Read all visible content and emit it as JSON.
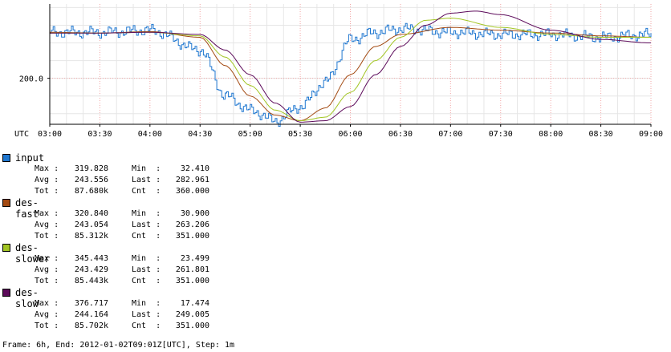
{
  "chart_data": {
    "type": "line",
    "timezone": "UTC",
    "x_ticks": [
      "03:00",
      "03:30",
      "04:00",
      "04:30",
      "05:00",
      "05:30",
      "06:00",
      "06:30",
      "07:00",
      "07:30",
      "08:00",
      "08:30",
      "09:00"
    ],
    "x_range": [
      "03:00",
      "09:00"
    ],
    "y_ticks": [
      200.0
    ],
    "y_tick_labels": [
      "200.0"
    ],
    "ylim": [
      135,
      305
    ],
    "grid": true,
    "legend_position": "bottom",
    "series": [
      {
        "name": "input",
        "color": "#1f77d0",
        "stepped": true,
        "x": [
          "03:00",
          "03:30",
          "04:00",
          "04:30",
          "04:45",
          "05:00",
          "05:15",
          "05:30",
          "05:45",
          "06:00",
          "06:15",
          "06:30",
          "07:00",
          "07:30",
          "08:00",
          "08:30",
          "09:00"
        ],
        "y": [
          265,
          265,
          268,
          240,
          175,
          155,
          140,
          160,
          195,
          255,
          265,
          270,
          265,
          262,
          262,
          258,
          262
        ],
        "stats": {
          "max": "319.828",
          "min": "32.410",
          "avg": "243.556",
          "last": "282.961",
          "tot": "87.680k",
          "cnt": "360.000"
        }
      },
      {
        "name": "des-fast",
        "color": "#a34a12",
        "stepped": false,
        "x": [
          "03:00",
          "03:30",
          "04:00",
          "04:30",
          "04:45",
          "05:00",
          "05:15",
          "05:30",
          "05:45",
          "06:00",
          "06:15",
          "06:30",
          "07:00",
          "07:30",
          "08:00",
          "08:30",
          "09:00"
        ],
        "y": [
          265,
          264,
          266,
          258,
          218,
          175,
          148,
          140,
          158,
          205,
          245,
          262,
          272,
          268,
          264,
          260,
          258
        ],
        "stats": {
          "max": "320.840",
          "min": "30.900",
          "avg": "243.054",
          "last": "263.206",
          "tot": "85.312k",
          "cnt": "351.000"
        }
      },
      {
        "name": "des-slower",
        "color": "#a2c523",
        "stepped": false,
        "x": [
          "03:00",
          "03:30",
          "04:00",
          "04:30",
          "04:45",
          "05:00",
          "05:15",
          "05:30",
          "05:45",
          "06:00",
          "06:15",
          "06:30",
          "06:45",
          "07:00",
          "07:30",
          "08:00",
          "08:30",
          "09:00"
        ],
        "y": [
          264,
          264,
          265,
          260,
          230,
          190,
          155,
          140,
          145,
          180,
          225,
          258,
          282,
          285,
          272,
          262,
          258,
          258
        ],
        "stats": {
          "max": "345.443",
          "min": "23.499",
          "avg": "243.429",
          "last": "261.801",
          "tot": "85.443k",
          "cnt": "351.000"
        }
      },
      {
        "name": "des-slow",
        "color": "#5c0a5a",
        "stepped": false,
        "x": [
          "03:00",
          "03:30",
          "04:00",
          "04:30",
          "04:45",
          "05:00",
          "05:15",
          "05:30",
          "05:45",
          "06:00",
          "06:15",
          "06:30",
          "06:45",
          "07:00",
          "07:15",
          "07:30",
          "08:00",
          "08:30",
          "09:00"
        ],
        "y": [
          264,
          264,
          265,
          262,
          240,
          205,
          165,
          138,
          140,
          160,
          205,
          245,
          275,
          292,
          295,
          290,
          268,
          255,
          250
        ],
        "stats": {
          "max": "376.717",
          "min": "17.474",
          "avg": "244.164",
          "last": "249.005",
          "tot": "85.702k",
          "cnt": "351.000"
        }
      }
    ],
    "footer": "Frame: 6h, End: 2012-01-02T09:01Z[UTC], Step: 1m"
  },
  "legend": {
    "labels": {
      "max": "Max :",
      "min": "Min  :",
      "avg": "Avg :",
      "last": "Last :",
      "tot": "Tot :",
      "cnt": "Cnt  :"
    }
  }
}
